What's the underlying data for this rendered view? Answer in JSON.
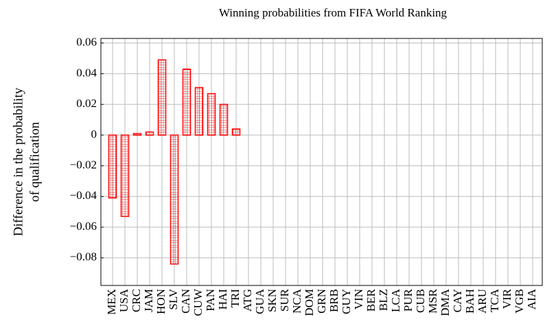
{
  "chart_data": {
    "type": "bar",
    "title": "Winning probabilities from FIFA World Ranking",
    "ylabel": [
      "Difference in the probability",
      "of qualification"
    ],
    "categories": [
      "MEX",
      "USA",
      "CRC",
      "JAM",
      "HON",
      "SLV",
      "CAN",
      "CUW",
      "PAN",
      "HAI",
      "TRI",
      "ATG",
      "GUA",
      "SKN",
      "SUR",
      "NCA",
      "DOM",
      "GRN",
      "BRB",
      "GUY",
      "VIN",
      "BER",
      "BLZ",
      "LCA",
      "PUR",
      "CUB",
      "MSR",
      "DMA",
      "CAY",
      "BAH",
      "ARU",
      "TCA",
      "VIR",
      "VGB",
      "AIA"
    ],
    "values": [
      -0.041,
      -0.053,
      0.001,
      0.002,
      0.049,
      -0.084,
      0.043,
      0.031,
      0.027,
      0.02,
      0.004,
      0,
      0,
      0,
      0,
      0,
      0,
      0,
      0,
      0,
      0,
      0,
      0,
      0,
      0,
      0,
      0,
      0,
      0,
      0,
      0,
      0,
      0,
      0,
      0
    ],
    "color": "#ff0000",
    "ylim": [
      -0.098,
      0.063
    ],
    "yticks": [
      {
        "value": -0.08,
        "label": "−0.08"
      },
      {
        "value": -0.06,
        "label": "−0.06"
      },
      {
        "value": -0.04,
        "label": "−0.04"
      },
      {
        "value": -0.02,
        "label": "−0.02"
      },
      0,
      0.02,
      0.04,
      0.06
    ],
    "grid": true
  }
}
